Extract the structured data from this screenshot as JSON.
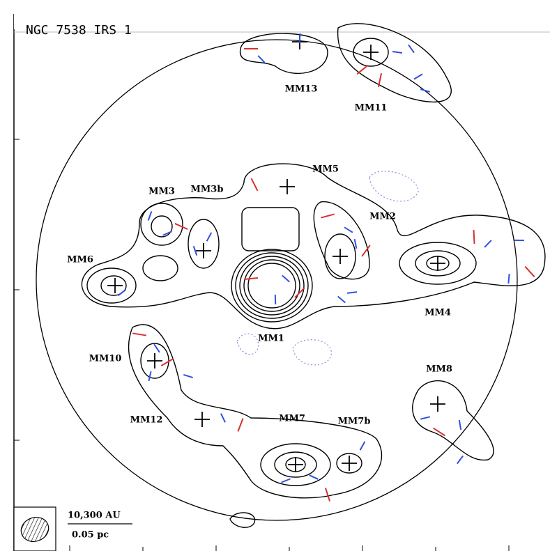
{
  "header": {
    "title": "NGC 7538 IRS 1"
  },
  "sources": [
    {
      "label": "MM13"
    },
    {
      "label": "MM11"
    },
    {
      "label": "MM5"
    },
    {
      "label": "MM3"
    },
    {
      "label": "MM3b"
    },
    {
      "label": "MM2"
    },
    {
      "label": "MM6"
    },
    {
      "label": "MM1"
    },
    {
      "label": "MM4"
    },
    {
      "label": "MM10"
    },
    {
      "label": "MM8"
    },
    {
      "label": "MM12"
    },
    {
      "label": "MM7"
    },
    {
      "label": "MM7b"
    }
  ],
  "scale_bar": {
    "top": "10,300 AU",
    "bottom": "0.05 pc"
  }
}
